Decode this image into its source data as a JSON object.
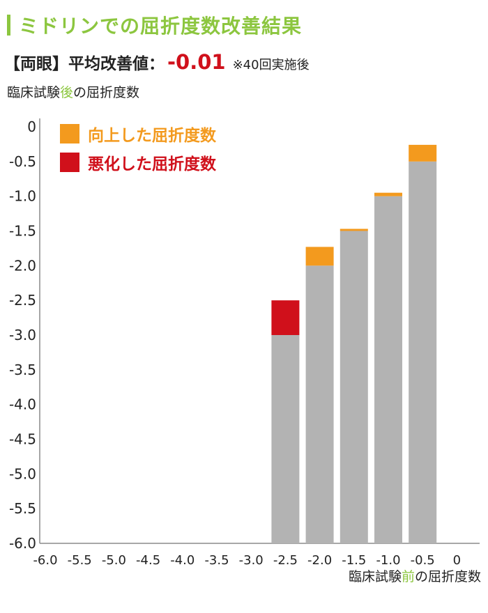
{
  "title": "ミドリンでの屈折度数改善結果",
  "summary": {
    "label": "【両眼】平均改善値：",
    "value": "-0.01",
    "note": "※40回実施後"
  },
  "y_axis_title": {
    "before": "臨床試験",
    "highlight": "後",
    "after": "の屈折度数"
  },
  "x_axis_title": {
    "before": "臨床試験",
    "highlight": "前",
    "after": "の屈折度数"
  },
  "colors": {
    "title": "#8cc63f",
    "accent_value": "#d0101b",
    "base": "#b3b3b3",
    "improved": "#f39a1e",
    "worsened": "#d0101b"
  },
  "chart_data": {
    "type": "bar",
    "x_tick_labels": [
      "-6.0",
      "-5.5",
      "-5.0",
      "-4.5",
      "-4.0",
      "-3.5",
      "-3.0",
      "-2.5",
      "-2.0",
      "-1.5",
      "-1.0",
      "-0.5",
      "0"
    ],
    "y_tick_labels": [
      "0",
      "-0.5",
      "-1.0",
      "-1.5",
      "-2.0",
      "-2.5",
      "-3.0",
      "-3.5",
      "-4.0",
      "-4.5",
      "-5.0",
      "-5.5",
      "-6.0"
    ],
    "xlim": [
      -6.0,
      0
    ],
    "ylim": [
      -6.0,
      0
    ],
    "legend": [
      {
        "label": "向上した屈折度数",
        "key": "improved",
        "color": "#f39a1e"
      },
      {
        "label": "悪化した屈折度数",
        "key": "worsened",
        "color": "#d0101b"
      }
    ],
    "legend_position": "top-left",
    "bars": [
      {
        "before": -2.5,
        "base_top": -3.0,
        "after": -2.5,
        "change": "worsened"
      },
      {
        "before": -2.0,
        "base_top": -2.0,
        "after": -1.73,
        "change": "improved"
      },
      {
        "before": -1.5,
        "base_top": -1.5,
        "after": -1.47,
        "change": "improved"
      },
      {
        "before": -1.0,
        "base_top": -1.0,
        "after": -0.95,
        "change": "improved"
      },
      {
        "before": -0.5,
        "base_top": -0.5,
        "after": -0.26,
        "change": "improved"
      }
    ]
  }
}
